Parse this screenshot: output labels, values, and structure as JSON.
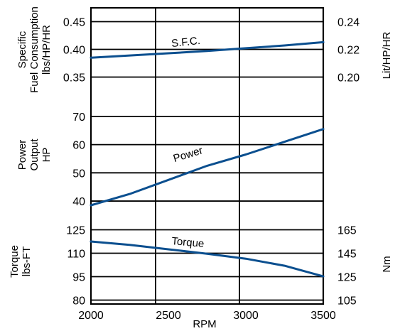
{
  "chart_data": {
    "type": "line",
    "xlabel": "RPM",
    "xlim": [
      2000,
      3500
    ],
    "x_ticks": [
      "2000",
      "2500",
      "3000",
      "3500"
    ],
    "panels": {
      "sfc": {
        "left_axis_label": [
          "Specific",
          "Fuel Consumption",
          "lbs/HP/HR"
        ],
        "right_axis_label": "Lit/HP/HR",
        "left_ticks": [
          {
            "label": "0.45",
            "value": 0.45
          },
          {
            "label": "0.40",
            "value": 0.4
          },
          {
            "label": "0.35",
            "value": 0.35
          }
        ],
        "right_ticks": [
          {
            "label": "0.24",
            "value": 0.24
          },
          {
            "label": "0.22",
            "value": 0.22
          },
          {
            "label": "0.20",
            "value": 0.2
          }
        ],
        "ylim": [
          0.325,
          0.475
        ],
        "series": [
          {
            "label": "S.F.C.",
            "x": [
              2000,
              2250,
              2500,
              2750,
              3000,
              3250,
              3500
            ],
            "y": [
              0.385,
              0.389,
              0.393,
              0.397,
              0.402,
              0.407,
              0.413
            ]
          }
        ]
      },
      "power": {
        "left_axis_label": [
          "Power",
          "Output",
          "HP"
        ],
        "left_ticks": [
          {
            "label": "70",
            "value": 70
          },
          {
            "label": "60",
            "value": 60
          },
          {
            "label": "50",
            "value": 50
          },
          {
            "label": "40",
            "value": 40
          }
        ],
        "ylim": [
          37,
          76
        ],
        "series": [
          {
            "label": "Power",
            "x": [
              2000,
              2250,
              2500,
              2750,
              3000,
              3250,
              3500
            ],
            "y": [
              38.5,
              42.5,
              47.5,
              52.5,
              56.5,
              61.0,
              65.5
            ]
          }
        ]
      },
      "torque": {
        "left_axis_label": [
          "Torque",
          "lbs-FT"
        ],
        "right_axis_label": "Nm",
        "left_ticks": [
          {
            "label": "125",
            "value": 125
          },
          {
            "label": "110",
            "value": 110
          },
          {
            "label": "95",
            "value": 95
          },
          {
            "label": "80",
            "value": 80
          }
        ],
        "right_ticks": [
          {
            "label": "165",
            "value": 165
          },
          {
            "label": "145",
            "value": 145
          },
          {
            "label": "125",
            "value": 125
          },
          {
            "label": "105",
            "value": 105
          }
        ],
        "ylim": [
          77.5,
          132.5
        ],
        "series": [
          {
            "label": "Torque",
            "x": [
              2000,
              2250,
              2500,
              2750,
              3000,
              3250,
              3500
            ],
            "y": [
              117.5,
              115.3,
              112.5,
              109.7,
              106.5,
              102.0,
              95.2
            ]
          }
        ]
      }
    },
    "color": "#0b4f8f"
  }
}
